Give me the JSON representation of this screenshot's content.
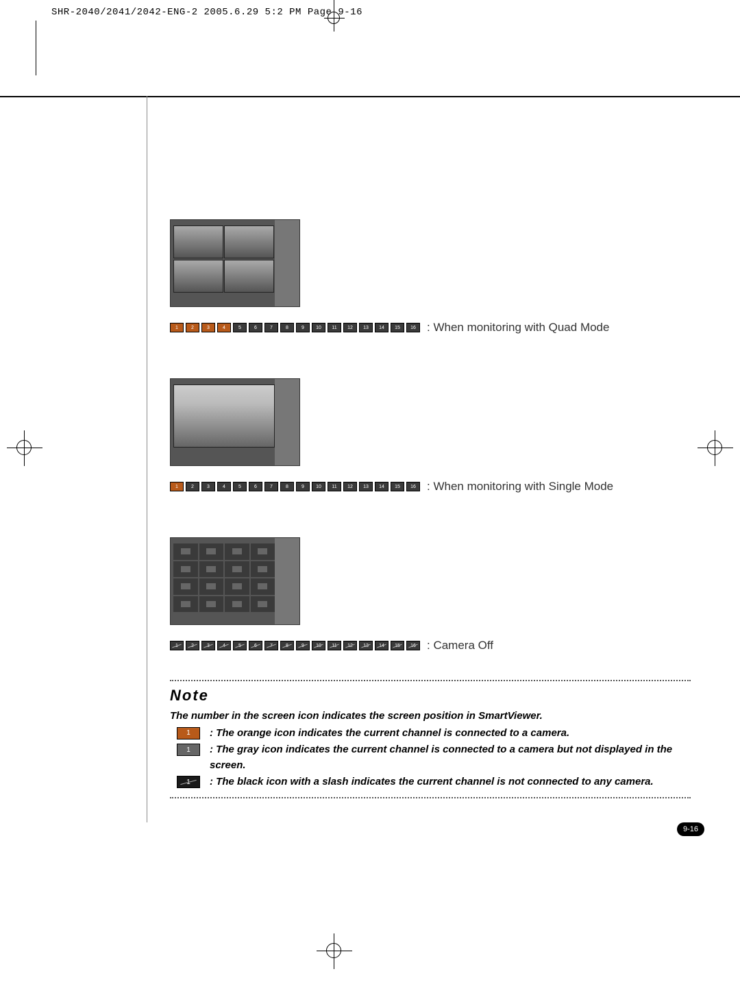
{
  "header": "SHR-2040/2041/2042-ENG-2  2005.6.29  5:2 PM  Page 9-16",
  "pageNumber": "9-16",
  "modes": {
    "quad": ": When monitoring with Quad Mode",
    "single": ": When monitoring with Single Mode",
    "off": ": Camera Off"
  },
  "note": {
    "title": "Note",
    "intro": "The number in the screen icon indicates the screen position in SmartViewer.",
    "orange": ": The orange icon indicates the current channel is connected to a camera.",
    "gray": ": The gray icon indicates the current channel is connected to a camera but not displayed in the screen.",
    "black": ": The black icon with a slash indicates the current channel is not connected to any camera."
  },
  "chipCounts": {
    "quad": 16,
    "single": 16,
    "off": 16
  },
  "chipStyles": {
    "quad": {
      "orangeFirstN": 4,
      "slash": false
    },
    "single": {
      "orangeFirstN": 1,
      "slash": false
    },
    "off": {
      "orangeFirstN": 0,
      "slash": true
    }
  },
  "colors": {
    "orange": "#b85a1a",
    "gray": "#666666",
    "black": "#1a1a1a",
    "chipDark": "#3a3a3a",
    "text": "#333333"
  },
  "bulletIconText": {
    "orange": "1",
    "gray": "1",
    "black": "1"
  }
}
